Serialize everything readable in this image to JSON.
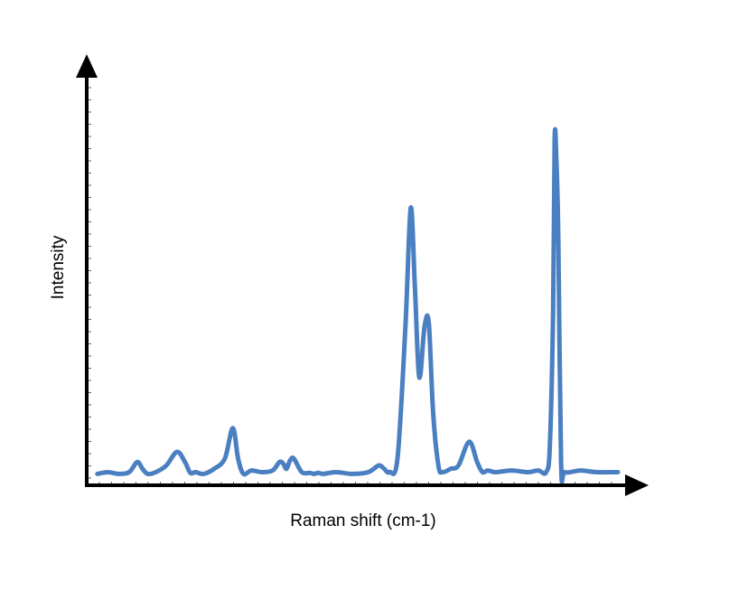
{
  "chart_data": {
    "type": "line",
    "title": "",
    "xlabel": "Raman shift (cm-1)",
    "ylabel": "Intensity",
    "xlim": [
      0,
      100
    ],
    "ylim": [
      0,
      100
    ],
    "grid": false,
    "line_color": "#4a7fc1",
    "axis_color": "#000000",
    "series": [
      {
        "x": [
          2,
          4,
          6,
          8,
          9.5,
          10.5,
          11.5,
          13,
          15,
          17,
          18.5,
          19.5,
          20.5,
          22,
          24,
          26,
          27.5,
          28.5,
          29.5,
          31,
          33,
          35,
          36.3,
          37,
          37.6,
          38.3,
          39,
          40.5,
          42,
          42.8,
          43.6,
          44.5,
          47,
          50,
          53,
          55,
          56,
          57,
          58.5,
          60,
          61,
          61.8,
          62.6,
          63.6,
          64.4,
          65.2,
          66.2,
          67,
          68.5,
          70,
          72,
          73.5,
          74.5,
          75.5,
          77,
          80,
          83,
          85,
          86.5,
          87.2,
          87.8,
          88.1,
          88.4,
          88.8,
          89.3,
          90,
          93,
          96,
          100
        ],
        "y": [
          1.5,
          2,
          1.5,
          2,
          5,
          3,
          1.5,
          2,
          4,
          8,
          5,
          1.8,
          2,
          1.5,
          3,
          6,
          15,
          6,
          1.5,
          2.5,
          2,
          2.5,
          5,
          4.5,
          3,
          5.5,
          6,
          2,
          1.8,
          1.5,
          1.8,
          1.5,
          2,
          1.5,
          2,
          4,
          3,
          2,
          6,
          45,
          80,
          56,
          30,
          45,
          46,
          20,
          4,
          2,
          3,
          4,
          11,
          5,
          2,
          2.5,
          2,
          2.5,
          2,
          2.5,
          2,
          10,
          50,
          100,
          95,
          70,
          5,
          2,
          2.5,
          2,
          2
        ]
      }
    ]
  }
}
